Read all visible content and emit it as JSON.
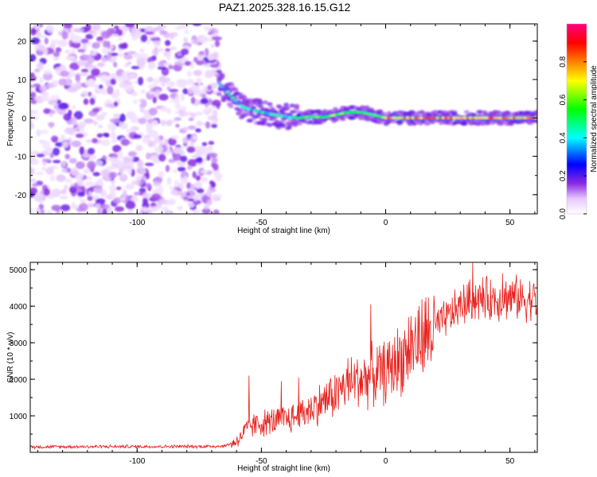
{
  "title": "PAZ1.2025.328.16.15.G12",
  "chart_data": [
    {
      "type": "heatmap",
      "xlabel": "Height of straight line (km)",
      "ylabel": "Frequency (Hz)",
      "xlim": [
        -143,
        61
      ],
      "ylim": [
        -25,
        24.5
      ],
      "xticks": [
        -100,
        -50,
        0,
        50
      ],
      "yticks": [
        -20,
        -10,
        0,
        10,
        20
      ],
      "colorbar": {
        "label": "Normalized spectral amplitude",
        "range": [
          0.0,
          1.0
        ],
        "ticks": [
          0.0,
          0.2,
          0.4,
          0.6,
          0.8
        ],
        "colors": [
          "#ffffff",
          "#e6c8ff",
          "#8a2be2",
          "#0000ff",
          "#00ffff",
          "#00ff00",
          "#ffff00",
          "#ff8000",
          "#ff0000",
          "#ff0080"
        ]
      },
      "noise_region_km": [
        -143,
        -67
      ],
      "ridge": {
        "x": [
          -67,
          -62,
          -58,
          -54,
          -50,
          -45,
          -40,
          -35,
          -30,
          -25,
          -20,
          -15,
          -10,
          -5,
          0,
          10,
          20,
          30,
          40,
          50,
          61
        ],
        "y": [
          9,
          5.5,
          3,
          2,
          1.5,
          0.8,
          0.3,
          0,
          0.3,
          0.2,
          0.8,
          1.5,
          1.5,
          0.8,
          0,
          0,
          0,
          0,
          0,
          0,
          0
        ],
        "amplitude": [
          0.4,
          0.5,
          0.45,
          0.45,
          0.5,
          0.45,
          0.5,
          0.7,
          0.6,
          0.7,
          0.7,
          0.7,
          0.65,
          0.6,
          0.9,
          0.9,
          0.9,
          0.9,
          0.9,
          0.9,
          0.9
        ]
      }
    },
    {
      "type": "line",
      "xlabel": "Height of straight line (km)",
      "ylabel": "SNR (10 * v/v)",
      "xlim": [
        -143,
        61
      ],
      "ylim": [
        0,
        5200
      ],
      "xticks": [
        -100,
        -50,
        0,
        50
      ],
      "yticks": [
        1000,
        2000,
        3000,
        4000,
        5000
      ],
      "color": "#e8201c",
      "trend": {
        "x": [
          -143,
          -100,
          -75,
          -65,
          -60,
          -55,
          -50,
          -45,
          -40,
          -35,
          -30,
          -25,
          -20,
          -15,
          -10,
          -5,
          0,
          5,
          10,
          15,
          20,
          25,
          30,
          35,
          40,
          45,
          50,
          55,
          61
        ],
        "y": [
          150,
          160,
          160,
          170,
          300,
          700,
          800,
          850,
          900,
          1000,
          1200,
          1400,
          1600,
          1900,
          2000,
          2100,
          2200,
          2500,
          2900,
          3100,
          3400,
          3700,
          4000,
          4200,
          4200,
          4200,
          4250,
          4200,
          4200
        ]
      },
      "spikes": [
        {
          "x": -55,
          "y": 2100
        },
        {
          "x": -42,
          "y": 1950
        },
        {
          "x": -35,
          "y": 2050
        },
        {
          "x": -6,
          "y": 4050
        },
        {
          "x": 35,
          "y": 5200
        },
        {
          "x": 47,
          "y": 4900
        }
      ]
    }
  ]
}
